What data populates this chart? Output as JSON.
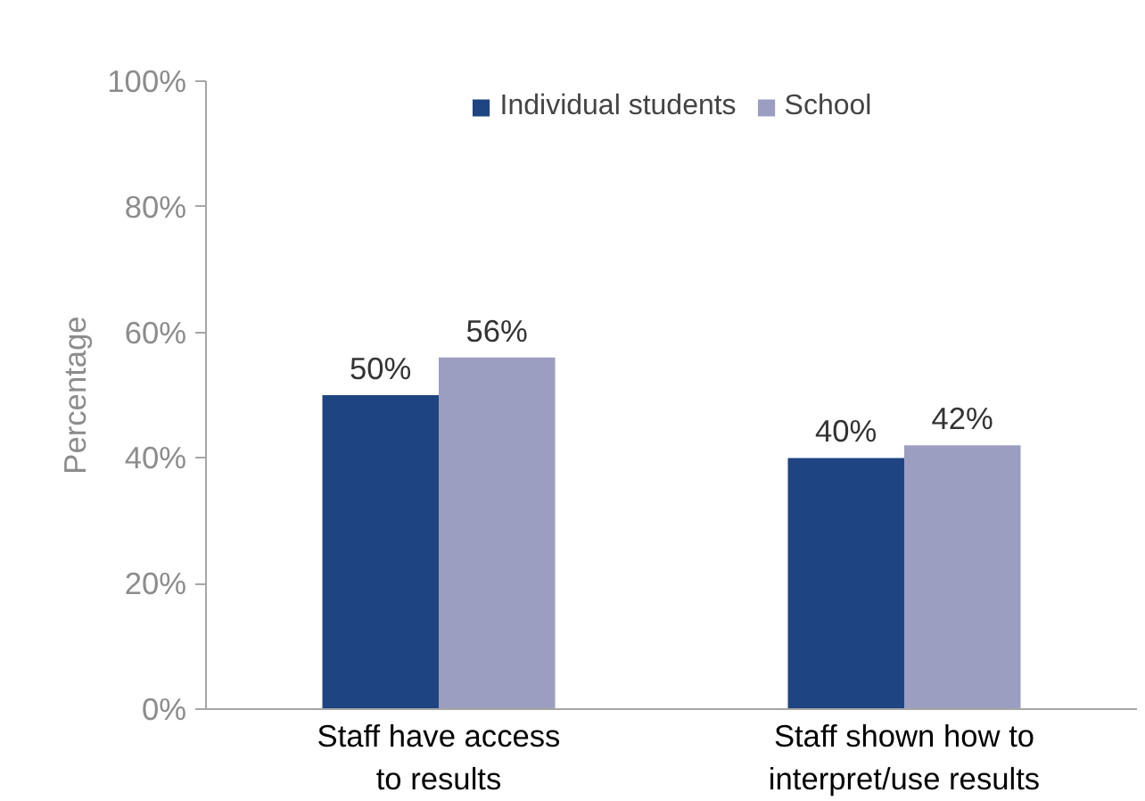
{
  "chart_data": {
    "type": "bar",
    "ylabel": "Percentage",
    "categories": [
      "Staff have access to results",
      "Staff shown how to interpret/use results"
    ],
    "series": [
      {
        "name": "Individual students",
        "color": "#1e4581",
        "values": [
          50,
          40
        ],
        "value_labels": [
          "50%",
          "40%"
        ]
      },
      {
        "name": "School",
        "color": "#9b9ec1",
        "values": [
          56,
          42
        ],
        "value_labels": [
          "56%",
          "42%"
        ]
      }
    ],
    "ylim": [
      0,
      100
    ],
    "yticks": [
      {
        "value": 0,
        "label": "0%"
      },
      {
        "value": 20,
        "label": "20%"
      },
      {
        "value": 40,
        "label": "40%"
      },
      {
        "value": 60,
        "label": "60%"
      },
      {
        "value": 80,
        "label": "80%"
      },
      {
        "value": 100,
        "label": "100%"
      }
    ],
    "grid": false,
    "legend": "top"
  }
}
